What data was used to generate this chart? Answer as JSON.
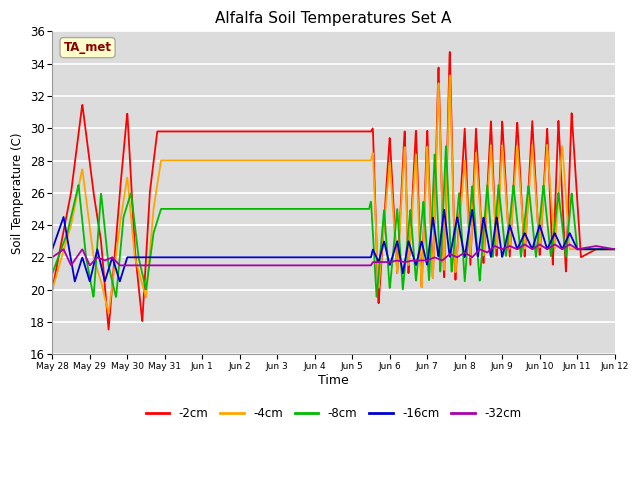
{
  "title": "Alfalfa Soil Temperatures Set A",
  "xlabel": "Time",
  "ylabel": "Soil Temperature (C)",
  "ylim": [
    16,
    36
  ],
  "yticks": [
    16,
    18,
    20,
    22,
    24,
    26,
    28,
    30,
    32,
    34,
    36
  ],
  "annotation_label": "TA_met",
  "annotation_color": "#8B0000",
  "annotation_bg": "#FFFFCC",
  "annotation_edge": "#AAAAAA",
  "bg_color": "#DCDCDC",
  "line_colors": {
    "-2cm": "#FF0000",
    "-4cm": "#FFA500",
    "-8cm": "#00BB00",
    "-16cm": "#0000CC",
    "-32cm": "#AA00AA"
  },
  "total_days": 15,
  "tick_days": [
    0,
    1,
    2,
    3,
    4,
    5,
    6,
    7,
    8,
    9,
    10,
    11,
    12,
    13,
    14,
    15
  ],
  "tick_labels": [
    "May 28",
    "May 29",
    "May 30",
    "May 31",
    "Jun 1",
    "Jun 2",
    "Jun 3",
    "Jun 4",
    "Jun 5",
    "Jun 6",
    "Jun 7",
    "Jun 8",
    "Jun 9",
    "Jun 10",
    "Jun 11",
    "Jun 12"
  ]
}
